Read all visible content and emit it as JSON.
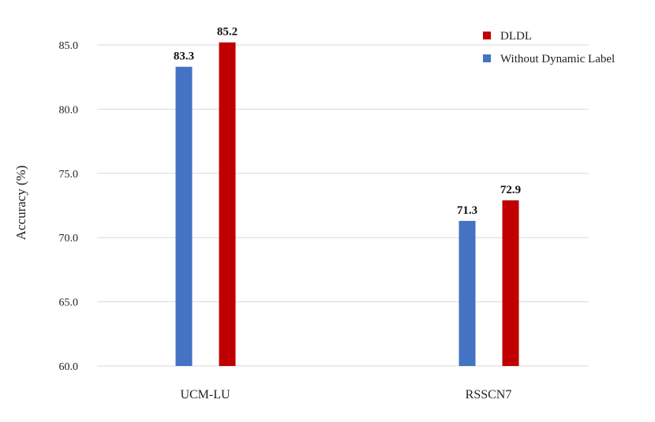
{
  "chart_data": {
    "type": "bar",
    "title": "",
    "xlabel": "",
    "ylabel": "Accuracy (%)",
    "ylim": [
      60,
      87
    ],
    "yticks": [
      "60.0",
      "65.0",
      "70.0",
      "75.0",
      "80.0",
      "85.0"
    ],
    "grid": true,
    "legend_position": "top-right",
    "categories": [
      "UCM-LU",
      "RSSCN7"
    ],
    "series": [
      {
        "name": "Without Dynamic Label",
        "color": "#4472c4",
        "values": [
          83.3,
          71.3
        ],
        "labels": [
          "83.3",
          "71.3"
        ]
      },
      {
        "name": "DLDL",
        "color": "#c00000",
        "values": [
          85.2,
          72.9
        ],
        "labels": [
          "85.2",
          "72.9"
        ]
      }
    ]
  }
}
